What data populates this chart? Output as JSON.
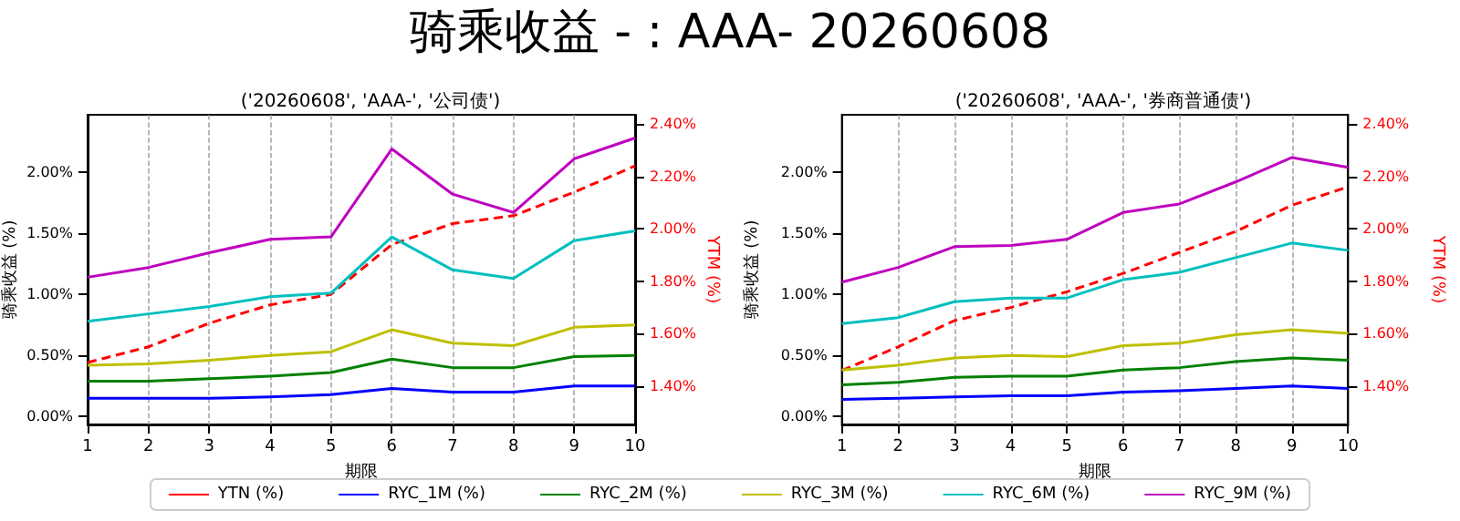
{
  "chart_data": [
    {
      "type": "line",
      "title": "骑乘收益 - : AAA- 20260608",
      "subtitle": "('20260608', 'AAA-', '公司债')",
      "xlabel": "期限",
      "ylabel": "骑乘收益 (%)",
      "y2label": "YTM (%)",
      "x": [
        1,
        2,
        3,
        4,
        5,
        6,
        7,
        8,
        9,
        10
      ],
      "xlim": [
        1,
        10
      ],
      "xticks": [
        1,
        2,
        3,
        4,
        5,
        6,
        7,
        8,
        9,
        10
      ],
      "ylim": [
        -0.065,
        2.47
      ],
      "yticks": [
        {
          "value": 0,
          "label": "0.00%"
        },
        {
          "value": 0.5,
          "label": "0.50%"
        },
        {
          "value": 1,
          "label": "1.00%"
        },
        {
          "value": 1.5,
          "label": "1.50%"
        },
        {
          "value": 2,
          "label": "2.00%"
        }
      ],
      "y2lim": [
        1.254,
        2.435
      ],
      "y2ticks": [
        {
          "value": 1.4,
          "label": "1.40%"
        },
        {
          "value": 1.6,
          "label": "1.60%"
        },
        {
          "value": 1.8,
          "label": "1.80%"
        },
        {
          "value": 2,
          "label": "2.00%"
        },
        {
          "value": 2.2,
          "label": "2.20%"
        },
        {
          "value": 2.4,
          "label": "2.40%"
        }
      ],
      "grid": "x",
      "legend": "bottom",
      "marker": "none",
      "series": [
        {
          "name": "YTN (%)",
          "color": "#ff0000",
          "axis": "y2",
          "line_style": "dashed",
          "values": [
            1.49,
            1.55,
            1.64,
            1.71,
            1.75,
            1.94,
            2.02,
            2.05,
            2.14,
            2.24
          ]
        },
        {
          "name": "RYC_1M (%)",
          "color": "#0000ff",
          "values": [
            0.15,
            0.15,
            0.15,
            0.16,
            0.18,
            0.23,
            0.2,
            0.2,
            0.25,
            0.25
          ]
        },
        {
          "name": "RYC_2M (%)",
          "color": "#008000",
          "values": [
            0.29,
            0.29,
            0.31,
            0.33,
            0.36,
            0.47,
            0.4,
            0.4,
            0.49,
            0.5
          ]
        },
        {
          "name": "RYC_3M (%)",
          "color": "#bfbf00",
          "values": [
            0.42,
            0.43,
            0.46,
            0.5,
            0.53,
            0.71,
            0.6,
            0.58,
            0.73,
            0.75
          ]
        },
        {
          "name": "RYC_6M (%)",
          "color": "#00bfbf",
          "values": [
            0.78,
            0.84,
            0.9,
            0.98,
            1.01,
            1.47,
            1.2,
            1.13,
            1.44,
            1.52
          ]
        },
        {
          "name": "RYC_9M (%)",
          "color": "#bf00bf",
          "values": [
            1.14,
            1.22,
            1.34,
            1.45,
            1.47,
            2.19,
            1.82,
            1.67,
            2.11,
            2.28
          ]
        }
      ]
    },
    {
      "type": "line",
      "subtitle": "('20260608', 'AAA-', '券商普通债')",
      "xlabel": "期限",
      "ylabel": "骑乘收益 (%)",
      "y2label": "YTM (%)",
      "x": [
        1,
        2,
        3,
        4,
        5,
        6,
        7,
        8,
        9,
        10
      ],
      "xlim": [
        1,
        10
      ],
      "xticks": [
        1,
        2,
        3,
        4,
        5,
        6,
        7,
        8,
        9,
        10
      ],
      "ylim": [
        -0.065,
        2.47
      ],
      "yticks": [
        {
          "value": 0,
          "label": "0.00%"
        },
        {
          "value": 0.5,
          "label": "0.50%"
        },
        {
          "value": 1,
          "label": "1.00%"
        },
        {
          "value": 1.5,
          "label": "1.50%"
        },
        {
          "value": 2,
          "label": "2.00%"
        }
      ],
      "y2lim": [
        1.254,
        2.435
      ],
      "y2ticks": [
        {
          "value": 1.4,
          "label": "1.40%"
        },
        {
          "value": 1.6,
          "label": "1.60%"
        },
        {
          "value": 1.8,
          "label": "1.80%"
        },
        {
          "value": 2,
          "label": "2.00%"
        },
        {
          "value": 2.2,
          "label": "2.20%"
        },
        {
          "value": 2.4,
          "label": "2.40%"
        }
      ],
      "grid": "x",
      "marker": "none",
      "series": [
        {
          "color": "#ff0000",
          "axis": "y2",
          "line_style": "dashed",
          "values": [
            1.46,
            1.55,
            1.65,
            1.7,
            1.76,
            1.83,
            1.91,
            1.99,
            2.09,
            2.16
          ]
        },
        {
          "color": "#0000ff",
          "values": [
            0.14,
            0.15,
            0.16,
            0.17,
            0.17,
            0.2,
            0.21,
            0.23,
            0.25,
            0.23
          ]
        },
        {
          "color": "#008000",
          "values": [
            0.26,
            0.28,
            0.32,
            0.33,
            0.33,
            0.38,
            0.4,
            0.45,
            0.48,
            0.46
          ]
        },
        {
          "color": "#bfbf00",
          "values": [
            0.38,
            0.42,
            0.48,
            0.5,
            0.49,
            0.58,
            0.6,
            0.67,
            0.71,
            0.68
          ]
        },
        {
          "color": "#00bfbf",
          "values": [
            0.76,
            0.81,
            0.94,
            0.97,
            0.97,
            1.12,
            1.18,
            1.3,
            1.42,
            1.36
          ]
        },
        {
          "color": "#bf00bf",
          "values": [
            1.1,
            1.22,
            1.39,
            1.4,
            1.45,
            1.67,
            1.74,
            1.92,
            2.12,
            2.04
          ]
        }
      ]
    }
  ]
}
